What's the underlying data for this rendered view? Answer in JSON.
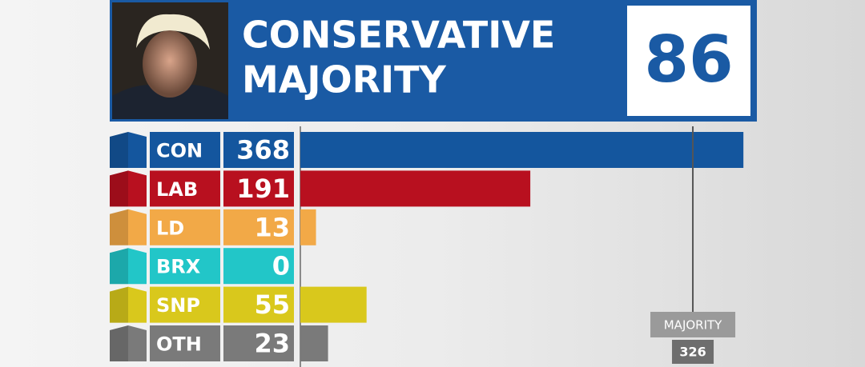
{
  "chart_data": {
    "type": "bar",
    "orientation": "horizontal",
    "headline": {
      "title": "CONSERVATIVE MAJORITY",
      "value": 86
    },
    "categories": [
      "CON",
      "LAB",
      "LD",
      "BRX",
      "SNP",
      "OTH"
    ],
    "values": [
      368,
      191,
      13,
      0,
      55,
      23
    ],
    "colors": [
      "#14569e",
      "#b8101f",
      "#f2a947",
      "#22c6c8",
      "#d9c81c",
      "#7a7a7a"
    ],
    "xlim": [
      0,
      469
    ],
    "majority": {
      "label": "MAJORITY",
      "value": 326
    }
  }
}
